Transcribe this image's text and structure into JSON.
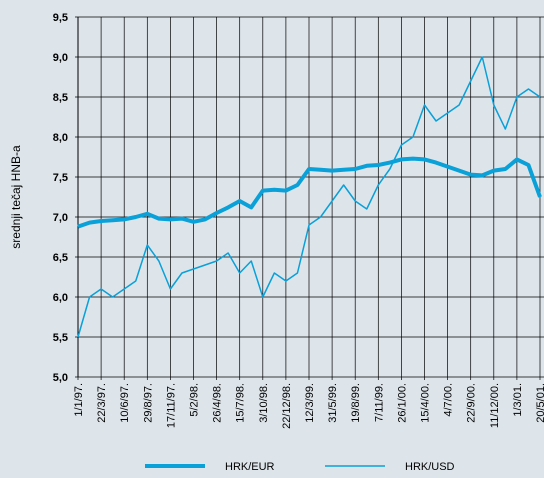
{
  "chart_data": {
    "type": "line",
    "y_label": "srednji tečaj HNB-a",
    "categories": [
      "1/1/97.",
      null,
      "22/3/97.",
      null,
      "10/6/97.",
      null,
      "29/8/97.",
      null,
      "17/11/97.",
      null,
      "5/2/98.",
      null,
      "26/4/98.",
      null,
      "15/7/98.",
      null,
      "3/10/98.",
      null,
      "22/12/98.",
      null,
      "12/3/99.",
      null,
      "31/5/99.",
      null,
      "19/8/99.",
      null,
      "7/11/99.",
      null,
      "26/1/00.",
      null,
      "15/4/00.",
      null,
      "4/7/00.",
      null,
      "22/9/00.",
      null,
      "11/12/00.",
      null,
      "1/3/01.",
      null,
      "20/5/01."
    ],
    "series": [
      {
        "name": "HRK/EUR",
        "color": "#0aa0d8",
        "linewidth": 4,
        "values": [
          6.88,
          6.93,
          6.95,
          6.96,
          6.97,
          7.0,
          7.04,
          6.98,
          6.97,
          6.98,
          6.94,
          6.97,
          7.05,
          7.12,
          7.2,
          7.12,
          7.33,
          7.34,
          7.33,
          7.4,
          7.6,
          7.59,
          7.58,
          7.59,
          7.6,
          7.64,
          7.65,
          7.68,
          7.72,
          7.73,
          7.72,
          7.68,
          7.63,
          7.58,
          7.53,
          7.52,
          7.58,
          7.6,
          7.72,
          7.65,
          7.25
        ]
      },
      {
        "name": "HRK/USD",
        "color": "#0aa0d8",
        "linewidth": 1.5,
        "values": [
          5.5,
          6.0,
          6.1,
          6.0,
          6.1,
          6.2,
          6.65,
          6.45,
          6.1,
          6.3,
          6.35,
          6.4,
          6.45,
          6.55,
          6.3,
          6.45,
          6.0,
          6.3,
          6.2,
          6.3,
          6.9,
          7.0,
          7.2,
          7.4,
          7.2,
          7.1,
          7.4,
          7.6,
          7.9,
          8.0,
          8.4,
          8.2,
          8.3,
          8.4,
          8.7,
          9.0,
          8.4,
          8.1,
          8.5,
          8.6,
          8.5
        ]
      }
    ],
    "ylim": [
      5.0,
      9.5
    ],
    "yticks": [
      {
        "value": 5.0,
        "label": "5,0"
      },
      {
        "value": 5.5,
        "label": "5,5"
      },
      {
        "value": 6.0,
        "label": "6,0"
      },
      {
        "value": 6.5,
        "label": "6,5"
      },
      {
        "value": 7.0,
        "label": "7,0"
      },
      {
        "value": 7.5,
        "label": "7,5"
      },
      {
        "value": 8.0,
        "label": "8,0"
      },
      {
        "value": 8.5,
        "label": "8,5"
      },
      {
        "value": 9.0,
        "label": "9,0"
      },
      {
        "value": 9.5,
        "label": "9,5"
      }
    ],
    "grid": true,
    "legend": "bottom"
  }
}
